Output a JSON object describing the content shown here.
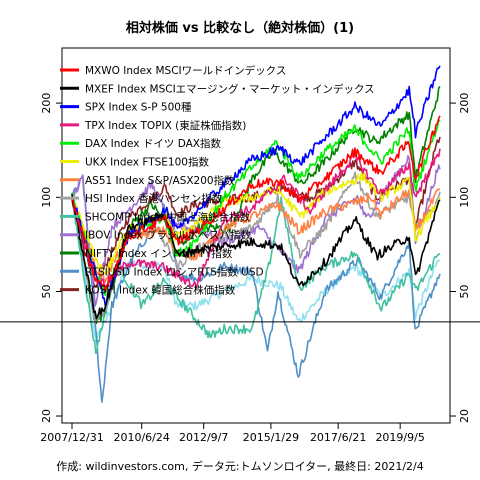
{
  "chart_data": {
    "type": "line",
    "title": "相対株価 vs 比較なし（絶対株価）(1)",
    "footer": "作成: wildinvestors.com, データ元:トムソンロイター, 最終日: 2021/2/4",
    "y_scale": "log",
    "ylim": [
      19,
      300
    ],
    "y_ticks": [
      20,
      50,
      100,
      200
    ],
    "x_start": "2007/12/31",
    "x_end": "2021/2/4",
    "x_ticks": [
      "2007/12/31",
      "2010/6/24",
      "2012/9/7",
      "2015/1/29",
      "2017/6/21",
      "2019/9/5"
    ],
    "reference_line": 40,
    "grid": false,
    "legend_position": "top-left",
    "series": [
      {
        "name": "MXWO Index MSCIワールドインデックス",
        "color": "#ff0000",
        "points": [
          [
            "2007/12/31",
            100
          ],
          [
            "2008/10/27",
            55
          ],
          [
            "2009/3/9",
            50
          ],
          [
            "2010/1/1",
            75
          ],
          [
            "2011/5/1",
            85
          ],
          [
            "2011/10/1",
            72
          ],
          [
            "2012/6/1",
            78
          ],
          [
            "2013/6/1",
            92
          ],
          [
            "2014/6/1",
            110
          ],
          [
            "2015/6/1",
            112
          ],
          [
            "2016/2/1",
            98
          ],
          [
            "2017/1/1",
            115
          ],
          [
            "2018/1/26",
            140
          ],
          [
            "2018/12/24",
            120
          ],
          [
            "2019/12/31",
            150
          ],
          [
            "2020/3/23",
            115
          ],
          [
            "2020/12/31",
            175
          ],
          [
            "2021/2/4",
            182
          ]
        ]
      },
      {
        "name": "MXEF Index MSCIエマージング・マーケット・インデックス",
        "color": "#000000",
        "points": [
          [
            "2007/12/31",
            100
          ],
          [
            "2008/10/27",
            42
          ],
          [
            "2009/3/9",
            45
          ],
          [
            "2010/1/1",
            80
          ],
          [
            "2011/5/1",
            88
          ],
          [
            "2011/10/1",
            65
          ],
          [
            "2012/6/1",
            68
          ],
          [
            "2013/6/1",
            70
          ],
          [
            "2014/6/1",
            72
          ],
          [
            "2015/6/1",
            70
          ],
          [
            "2016/1/21",
            52
          ],
          [
            "2017/1/1",
            62
          ],
          [
            "2018/1/26",
            85
          ],
          [
            "2018/10/29",
            65
          ],
          [
            "2019/12/31",
            75
          ],
          [
            "2020/3/23",
            55
          ],
          [
            "2020/12/31",
            93
          ],
          [
            "2021/2/4",
            98
          ]
        ]
      },
      {
        "name": "SPX Index S-P 500種",
        "color": "#0000ff",
        "points": [
          [
            "2007/12/31",
            100
          ],
          [
            "2008/11/20",
            55
          ],
          [
            "2009/3/9",
            46
          ],
          [
            "2010/1/1",
            75
          ],
          [
            "2011/5/1",
            92
          ],
          [
            "2011/10/1",
            78
          ],
          [
            "2012/6/1",
            90
          ],
          [
            "2013/6/1",
            110
          ],
          [
            "2014/6/1",
            132
          ],
          [
            "2015/6/1",
            143
          ],
          [
            "2016/2/1",
            128
          ],
          [
            "2017/1/1",
            155
          ],
          [
            "2018/1/26",
            195
          ],
          [
            "2018/12/24",
            168
          ],
          [
            "2019/12/31",
            220
          ],
          [
            "2020/3/23",
            160
          ],
          [
            "2020/12/31",
            254
          ],
          [
            "2021/2/4",
            263
          ]
        ]
      },
      {
        "name": "TPX Index TOPIX (東証株価指数)",
        "color": "#e6197d",
        "points": [
          [
            "2007/12/31",
            100
          ],
          [
            "2008/10/27",
            55
          ],
          [
            "2009/3/9",
            53
          ],
          [
            "2010/1/1",
            62
          ],
          [
            "2011/3/15",
            60
          ],
          [
            "2012/6/1",
            52
          ],
          [
            "2013/5/22",
            85
          ],
          [
            "2014/6/1",
            92
          ],
          [
            "2015/8/1",
            115
          ],
          [
            "2016/6/24",
            90
          ],
          [
            "2017/1/1",
            105
          ],
          [
            "2018/1/23",
            135
          ],
          [
            "2018/12/25",
            103
          ],
          [
            "2019/12/31",
            127
          ],
          [
            "2020/3/16",
            100
          ],
          [
            "2020/12/31",
            135
          ],
          [
            "2021/2/4",
            143
          ]
        ]
      },
      {
        "name": "DAX Index ドイツ DAX指数",
        "color": "#00ee00",
        "points": [
          [
            "2007/12/31",
            100
          ],
          [
            "2008/11/20",
            55
          ],
          [
            "2009/3/9",
            49
          ],
          [
            "2010/1/1",
            75
          ],
          [
            "2011/5/1",
            88
          ],
          [
            "2011/9/12",
            65
          ],
          [
            "2012/6/1",
            73
          ],
          [
            "2013/6/1",
            100
          ],
          [
            "2014/6/1",
            125
          ],
          [
            "2015/4/10",
            150
          ],
          [
            "2016/2/1",
            115
          ],
          [
            "2017/1/1",
            140
          ],
          [
            "2018/1/23",
            165
          ],
          [
            "2018/12/27",
            130
          ],
          [
            "2019/12/31",
            165
          ],
          [
            "2020/3/16",
            105
          ],
          [
            "2020/12/31",
            170
          ],
          [
            "2021/2/4",
            175
          ]
        ]
      },
      {
        "name": "UKX Index FTSE100指数",
        "color": "#eeee00",
        "points": [
          [
            "2007/12/31",
            100
          ],
          [
            "2008/11/20",
            62
          ],
          [
            "2009/3/9",
            57
          ],
          [
            "2010/1/1",
            80
          ],
          [
            "2011/5/1",
            88
          ],
          [
            "2011/9/1",
            75
          ],
          [
            "2012/6/1",
            82
          ],
          [
            "2013/6/1",
            96
          ],
          [
            "2014/6/1",
            100
          ],
          [
            "2015/4/27",
            106
          ],
          [
            "2016/2/11",
            87
          ],
          [
            "2017/1/1",
            104
          ],
          [
            "2018/5/22",
            117
          ],
          [
            "2018/12/24",
            100
          ],
          [
            "2019/12/31",
            113
          ],
          [
            "2020/3/23",
            74
          ],
          [
            "2020/12/31",
            96
          ],
          [
            "2021/2/4",
            100
          ]
        ]
      },
      {
        "name": "AS51 Index S&P/ASX200指数",
        "color": "#ff8040",
        "points": [
          [
            "2007/12/31",
            100
          ],
          [
            "2008/11/20",
            58
          ],
          [
            "2009/3/6",
            55
          ],
          [
            "2010/1/1",
            75
          ],
          [
            "2011/5/1",
            78
          ],
          [
            "2011/9/1",
            66
          ],
          [
            "2012/6/1",
            65
          ],
          [
            "2013/6/1",
            80
          ],
          [
            "2014/6/1",
            87
          ],
          [
            "2015/4/27",
            95
          ],
          [
            "2016/2/1",
            78
          ],
          [
            "2017/1/1",
            90
          ],
          [
            "2018/8/29",
            100
          ],
          [
            "2018/12/24",
            88
          ],
          [
            "2019/12/31",
            105
          ],
          [
            "2020/3/23",
            78
          ],
          [
            "2020/12/31",
            103
          ],
          [
            "2021/2/4",
            106
          ]
        ]
      },
      {
        "name": "HSI Index 香港ハンセン指数",
        "color": "#a0a0a0",
        "points": [
          [
            "2007/12/31",
            100
          ],
          [
            "2008/10/27",
            40
          ],
          [
            "2009/3/9",
            44
          ],
          [
            "2010/1/1",
            77
          ],
          [
            "2010/11/1",
            85
          ],
          [
            "2011/10/4",
            60
          ],
          [
            "2012/6/1",
            68
          ],
          [
            "2013/6/1",
            75
          ],
          [
            "2014/6/1",
            80
          ],
          [
            "2015/4/27",
            100
          ],
          [
            "2016/2/12",
            66
          ],
          [
            "2017/1/1",
            80
          ],
          [
            "2018/1/26",
            118
          ],
          [
            "2018/10/30",
            87
          ],
          [
            "2019/12/31",
            100
          ],
          [
            "2020/3/23",
            80
          ],
          [
            "2020/12/31",
            96
          ],
          [
            "2021/2/4",
            104
          ]
        ]
      },
      {
        "name": "SHCOMP Index 中国上海総合指数",
        "color": "#40c0a0",
        "points": [
          [
            "2007/12/31",
            100
          ],
          [
            "2008/11/4",
            32
          ],
          [
            "2009/8/4",
            61
          ],
          [
            "2010/7/1",
            45
          ],
          [
            "2011/4/1",
            54
          ],
          [
            "2012/12/3",
            36
          ],
          [
            "2013/6/1",
            38
          ],
          [
            "2014/6/1",
            38
          ],
          [
            "2014/12/31",
            60
          ],
          [
            "2015/6/12",
            98
          ],
          [
            "2016/1/27",
            51
          ],
          [
            "2017/1/1",
            60
          ],
          [
            "2018/1/29",
            66
          ],
          [
            "2019/1/4",
            44
          ],
          [
            "2019/12/31",
            57
          ],
          [
            "2020/3/23",
            50
          ],
          [
            "2020/12/31",
            65
          ],
          [
            "2021/2/4",
            66
          ]
        ]
      },
      {
        "name": "IBOV Index ブラジルボベスパ指数",
        "color": "#a070d0",
        "points": [
          [
            "2007/12/31",
            100
          ],
          [
            "2008/5/20",
            115
          ],
          [
            "2008/10/27",
            46
          ],
          [
            "2009/6/1",
            80
          ],
          [
            "2010/11/1",
            110
          ],
          [
            "2011/8/1",
            80
          ],
          [
            "2012/6/1",
            80
          ],
          [
            "2013/6/1",
            72
          ],
          [
            "2014/9/1",
            80
          ],
          [
            "2016/1/26",
            58
          ],
          [
            "2017/1/1",
            85
          ],
          [
            "2018/2/26",
            100
          ],
          [
            "2018/6/18",
            85
          ],
          [
            "2019/12/31",
            135
          ],
          [
            "2020/3/23",
            72
          ],
          [
            "2020/12/31",
            122
          ],
          [
            "2021/2/4",
            123
          ]
        ]
      },
      {
        "name": "NIFTY Index インドNIFTY指数",
        "color": "#008000",
        "points": [
          [
            "2007/12/31",
            100
          ],
          [
            "2008/10/27",
            40
          ],
          [
            "2009/3/9",
            43
          ],
          [
            "2010/1/1",
            80
          ],
          [
            "2010/11/1",
            95
          ],
          [
            "2011/12/20",
            70
          ],
          [
            "2012/6/1",
            80
          ],
          [
            "2013/8/28",
            80
          ],
          [
            "2014/6/1",
            115
          ],
          [
            "2015/3/4",
            140
          ],
          [
            "2016/2/29",
            110
          ],
          [
            "2017/1/1",
            130
          ],
          [
            "2018/1/29",
            168
          ],
          [
            "2018/10/26",
            150
          ],
          [
            "2019/12/31",
            185
          ],
          [
            "2020/3/23",
            115
          ],
          [
            "2020/12/31",
            210
          ],
          [
            "2021/2/4",
            226
          ]
        ]
      },
      {
        "name": "RTSIUSD Index ロシアRTS指数 USD",
        "color": "#5090c8",
        "points": [
          [
            "2007/12/31",
            100
          ],
          [
            "2008/5/19",
            115
          ],
          [
            "2009/1/23",
            22
          ],
          [
            "2009/6/1",
            45
          ],
          [
            "2010/1/1",
            60
          ],
          [
            "2011/4/8",
            92
          ],
          [
            "2011/10/4",
            57
          ],
          [
            "2012/6/1",
            55
          ],
          [
            "2013/6/1",
            60
          ],
          [
            "2014/6/1",
            58
          ],
          [
            "2014/12/16",
            32
          ],
          [
            "2015/5/1",
            50
          ],
          [
            "2016/1/20",
            27
          ],
          [
            "2017/1/1",
            50
          ],
          [
            "2018/3/1",
            63
          ],
          [
            "2018/12/24",
            48
          ],
          [
            "2019/12/31",
            72
          ],
          [
            "2020/3/18",
            37
          ],
          [
            "2020/12/31",
            55
          ],
          [
            "2021/2/4",
            57
          ]
        ]
      },
      {
        "name": "KOSPI Index 韓国総合株価指数",
        "color": "#882222",
        "points": [
          [
            "2007/12/31",
            100
          ],
          [
            "2008/10/24",
            50
          ],
          [
            "2009/3/1",
            60
          ],
          [
            "2010/1/1",
            86
          ],
          [
            "2011/5/1",
            108
          ],
          [
            "2011/9/26",
            88
          ],
          [
            "2012/6/1",
            95
          ],
          [
            "2013/6/1",
            98
          ],
          [
            "2014/6/1",
            100
          ],
          [
            "2015/6/1",
            107
          ],
          [
            "2016/6/1",
            100
          ],
          [
            "2017/1/1",
            105
          ],
          [
            "2018/1/29",
            130
          ],
          [
            "2018/10/29",
            100
          ],
          [
            "2019/12/31",
            115
          ],
          [
            "2020/3/19",
            80
          ],
          [
            "2020/12/31",
            150
          ],
          [
            "2021/2/4",
            156
          ]
        ]
      },
      {
        "name": "",
        "color": "#90e0f0",
        "points": [
          [
            "2007/12/31",
            100
          ],
          [
            "2008/10/27",
            35
          ],
          [
            "2009/3/9",
            40
          ],
          [
            "2010/1/1",
            62
          ],
          [
            "2011/4/1",
            60
          ],
          [
            "2011/10/1",
            45
          ],
          [
            "2012/6/1",
            45
          ],
          [
            "2013/6/1",
            50
          ],
          [
            "2014/6/1",
            55
          ],
          [
            "2015/6/1",
            52
          ],
          [
            "2016/1/21",
            40
          ],
          [
            "2017/1/1",
            50
          ],
          [
            "2018/1/26",
            60
          ],
          [
            "2019/1/1",
            48
          ],
          [
            "2019/12/31",
            58
          ],
          [
            "2020/3/23",
            42
          ],
          [
            "2020/12/31",
            62
          ],
          [
            "2021/2/4",
            63
          ]
        ]
      }
    ]
  }
}
